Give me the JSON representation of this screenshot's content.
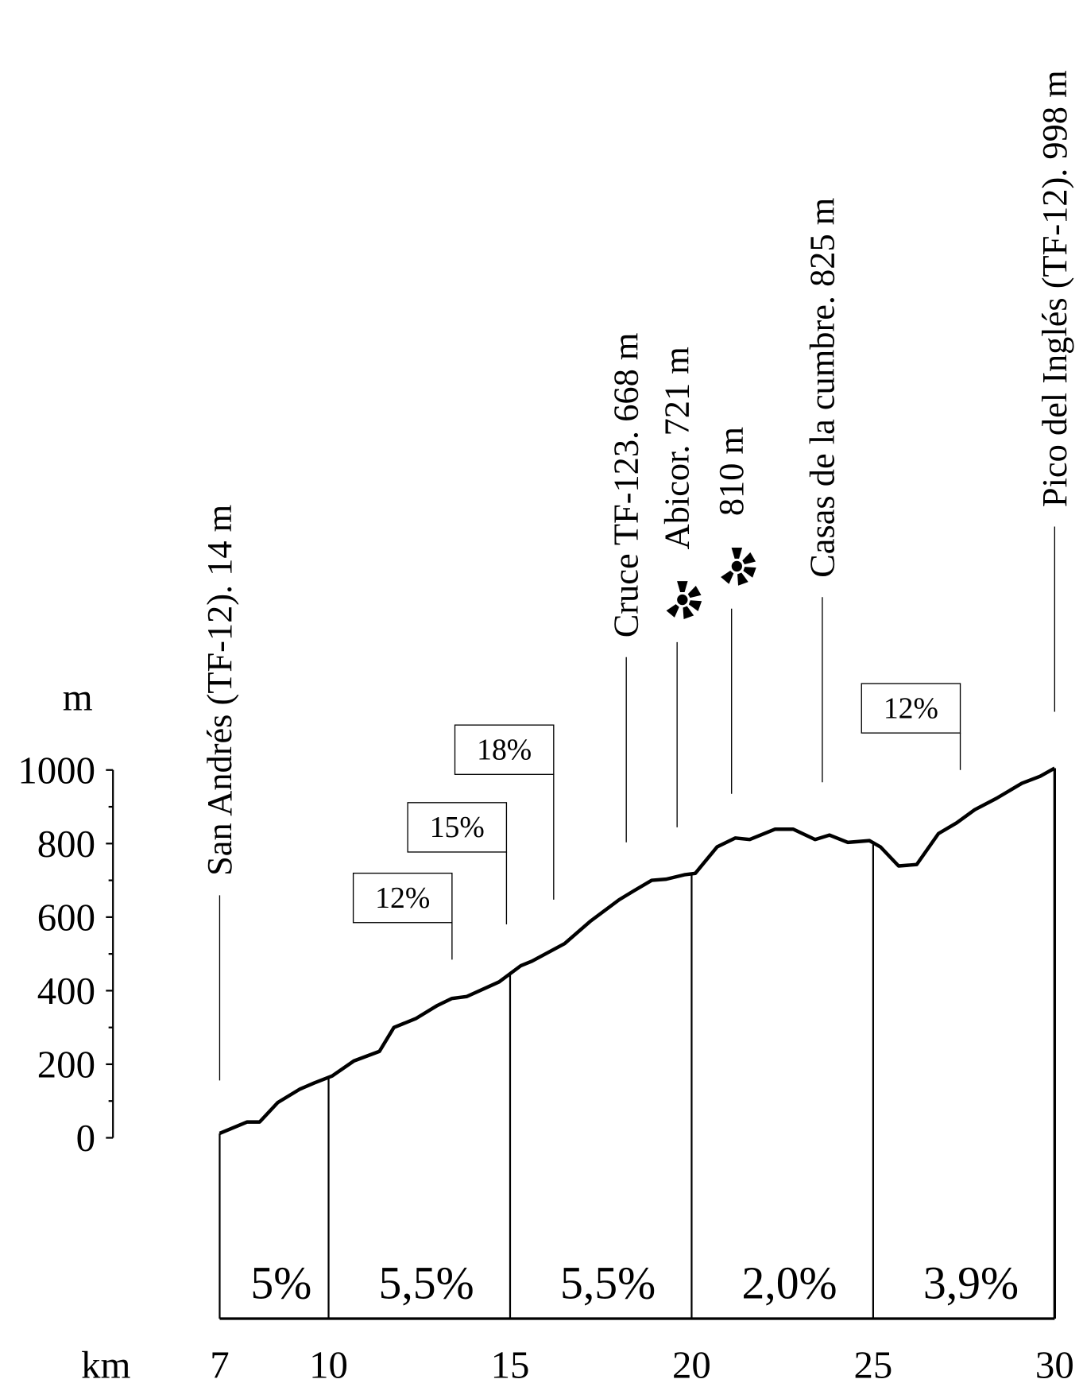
{
  "chart_data": {
    "type": "line",
    "x_label": "km",
    "y_label": "m",
    "xlim": [
      7,
      30
    ],
    "ylim": [
      0,
      1000
    ],
    "xticks": [
      7,
      10,
      15,
      20,
      25,
      30
    ],
    "yticks": [
      0,
      200,
      400,
      600,
      800,
      1000
    ],
    "yticks_minor": [
      100,
      300,
      500,
      700,
      900
    ],
    "color": "#000000",
    "x": [
      7,
      7.75,
      8.1,
      8.6,
      9.2,
      9.6,
      10.1,
      10.7,
      11.4,
      11.8,
      12.4,
      13.0,
      13.4,
      13.8,
      14.7,
      15.3,
      15.6,
      16.5,
      17.2,
      18.0,
      18.4,
      18.9,
      19.3,
      19.8,
      20.1,
      20.7,
      21.2,
      21.6,
      22.3,
      22.8,
      23.4,
      23.8,
      24.3,
      24.9,
      25.2,
      25.7,
      26.2,
      26.8,
      27.3,
      27.8,
      28.4,
      29.1,
      29.6,
      30
    ],
    "values": [
      12,
      43,
      43,
      96,
      132,
      149,
      168,
      209,
      235,
      300,
      324,
      360,
      379,
      384,
      424,
      468,
      480,
      528,
      588,
      647,
      671,
      700,
      703,
      715,
      719,
      791,
      815,
      811,
      839,
      839,
      811,
      823,
      803,
      808,
      791,
      739,
      743,
      827,
      856,
      892,
      923,
      964,
      983,
      1005
    ],
    "segments": [
      {
        "label": "5%",
        "start": 7,
        "end": 10
      },
      {
        "label": "5,5%",
        "start": 10,
        "end": 15
      },
      {
        "label": "5,5%",
        "start": 15,
        "end": 20
      },
      {
        "label": "2,0%",
        "start": 20,
        "end": 25
      },
      {
        "label": "3,9%",
        "start": 25,
        "end": 30
      }
    ],
    "grade_boxes": [
      {
        "text": "12%",
        "x": 13.4
      },
      {
        "text": "15%",
        "x": 14.9
      },
      {
        "text": "18%",
        "x": 16.2
      },
      {
        "text": "12%",
        "x": 27.4
      }
    ],
    "places": [
      {
        "text": "San Andrés (TF-12). 14 m",
        "x": 7
      },
      {
        "text": "Cruce TF-123. 668 m",
        "x": 18.2
      },
      {
        "text": "Abicor. 721 m",
        "x": 19.6,
        "windmill": true
      },
      {
        "text": "810 m",
        "x": 21.1,
        "windmill": true
      },
      {
        "text": "Casas de la cumbre. 825 m",
        "x": 23.6
      },
      {
        "text": "Pico del Inglés (TF-12). 998 m",
        "x": 30
      }
    ]
  }
}
